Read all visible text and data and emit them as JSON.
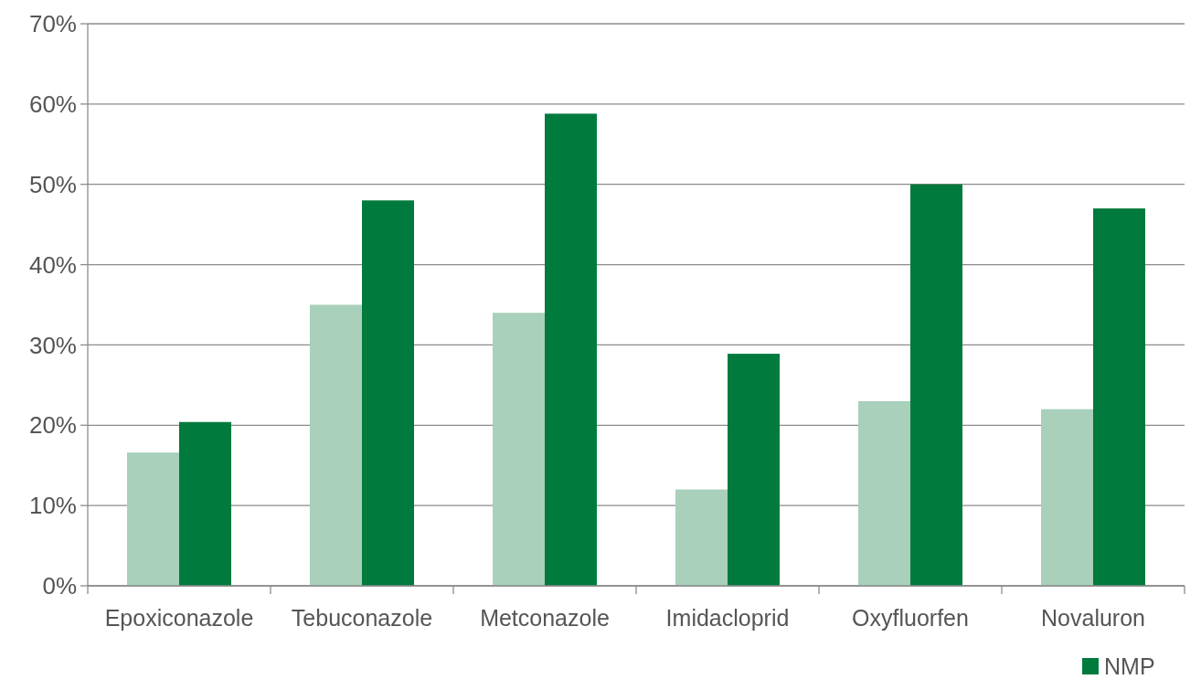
{
  "chart_data": {
    "type": "bar",
    "categories": [
      "Epoxiconazole",
      "Tebuconazole",
      "Metconazole",
      "Imidacloprid",
      "Oxyfluorfen",
      "Novaluron"
    ],
    "series": [
      {
        "color": "#a8d0bb",
        "values": [
          16.6,
          35,
          34,
          12,
          23,
          22
        ]
      },
      {
        "name": "NMP",
        "color": "#007a3d",
        "values": [
          20.4,
          48,
          58.8,
          28.9,
          50,
          47
        ]
      }
    ],
    "ylim": [
      0,
      70
    ],
    "yticks": [
      {
        "value": 0,
        "label": "0%"
      },
      {
        "value": 10,
        "label": "10%"
      },
      {
        "value": 20,
        "label": "20%"
      },
      {
        "value": 30,
        "label": "30%"
      },
      {
        "value": 40,
        "label": "40%"
      },
      {
        "value": 50,
        "label": "50%"
      },
      {
        "value": 60,
        "label": "60%"
      },
      {
        "value": 70,
        "label": "70%"
      }
    ],
    "grid": "y",
    "legend": "bottom right"
  }
}
